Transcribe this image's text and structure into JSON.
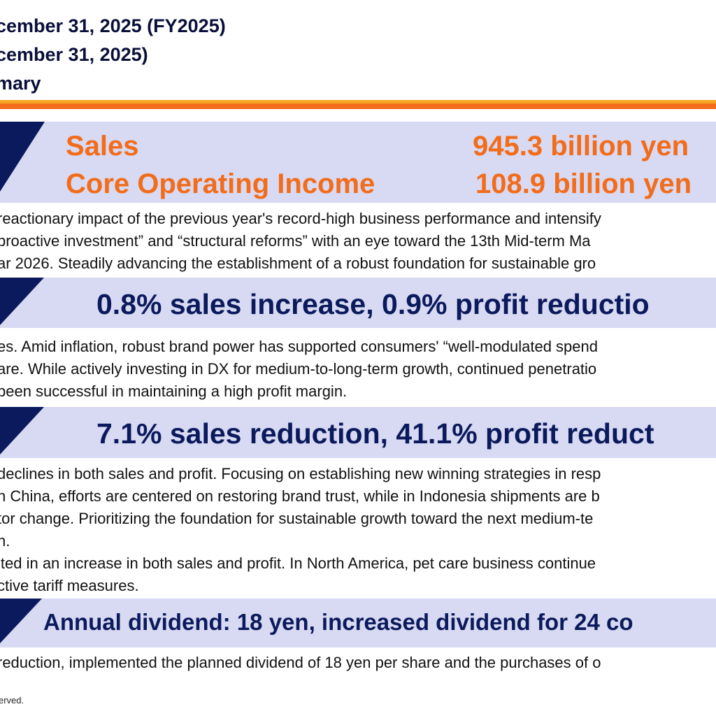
{
  "header": {
    "line1": "cember 31, 2025 (FY2025)",
    "line2": "cember 31, 2025)",
    "line3": "mary"
  },
  "colors": {
    "accent_orange": "#f26c1a",
    "accent_gold": "#f5a623",
    "band_bg": "#d8d9f2",
    "navy": "#0b1a5c"
  },
  "summary": {
    "sales_label": "Sales",
    "sales_value": "945.3 billion yen",
    "coi_label": "Core Operating Income",
    "coi_value": "108.9 billion yen",
    "lines": [
      "reactionary impact of the previous year's record-high business performance and intensify",
      "proactive investment” and “structural reforms” with an eye toward the 13th Mid-term Ma",
      "ar 2026. Steadily advancing the establishment of a robust foundation for sustainable gro"
    ]
  },
  "section2": {
    "heading": "0.8% sales increase, 0.9% profit reductio",
    "lines": [
      "es. Amid inflation, robust brand power has supported consumers' “well-modulated spend",
      "are. While actively investing in DX for medium-to-long-term growth, continued penetratio",
      "been successful in maintaining a high profit margin."
    ]
  },
  "section3": {
    "heading": "7.1% sales reduction, 41.1% profit reduct",
    "lines": [
      "declines in both sales and profit. Focusing on establishing new winning strategies in resp",
      "n China, efforts are centered on restoring brand trust, while in Indonesia shipments are b",
      "tor change. Prioritizing the foundation for sustainable growth toward the next medium-te",
      "h.",
      "lted in an increase in both sales and profit. In North America, pet care business continue",
      "ctive tariff measures."
    ]
  },
  "section4": {
    "heading": "Annual dividend: 18 yen, increased dividend for 24 co",
    "lines": [
      "reduction, implemented the planned dividend of 18 yen per share and the purchases of o"
    ]
  },
  "footer": {
    "text": "erved."
  }
}
